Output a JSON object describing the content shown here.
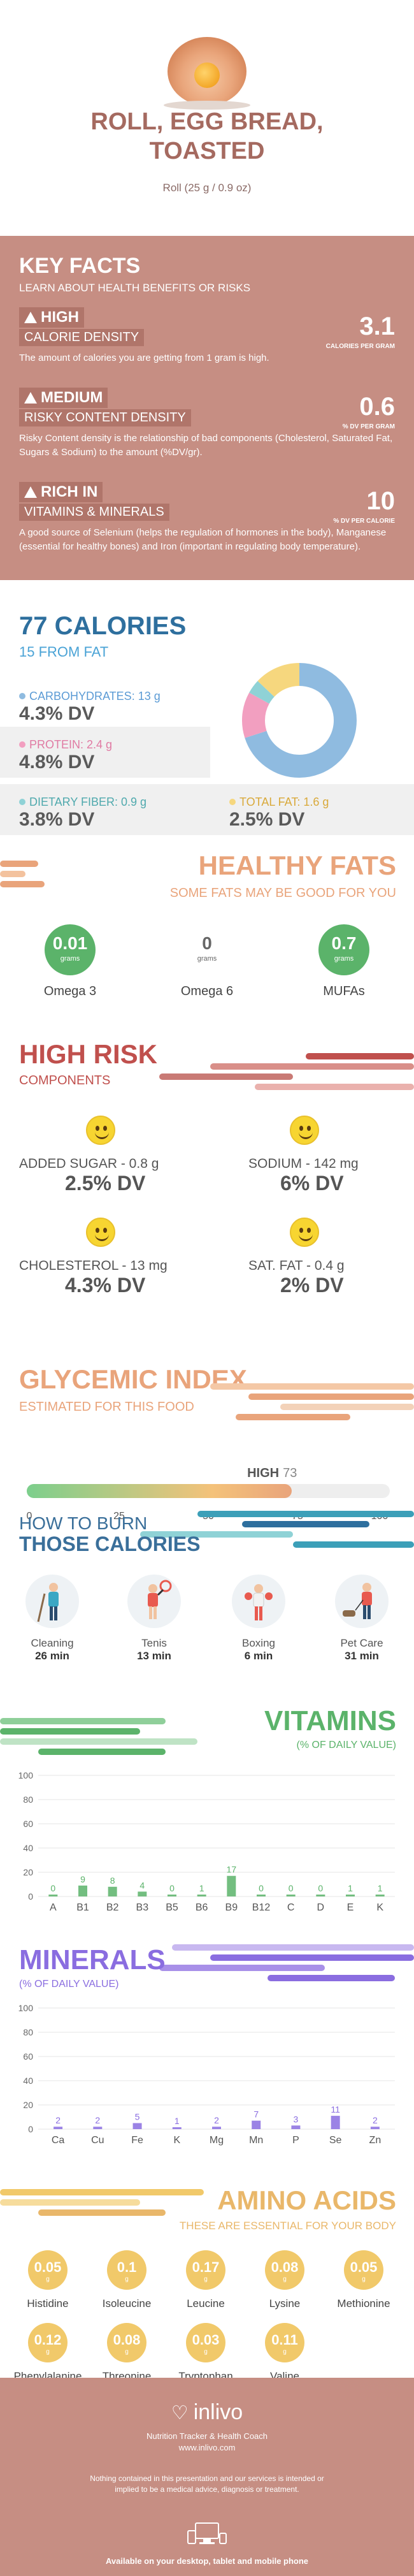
{
  "header": {
    "title_line1": "ROLL, EGG BREAD,",
    "title_line2": "TOASTED",
    "subtitle": "Roll (25 g / 0.9 oz)"
  },
  "key_facts": {
    "heading": "KEY FACTS",
    "subheading": "LEARN ABOUT HEALTH BENEFITS OR RISKS",
    "items": [
      {
        "level": "HIGH",
        "label": "CALORIE DENSITY",
        "value": "3.1",
        "unit": "CALORIES PER GRAM",
        "desc": "The amount of calories you are getting from 1 gram is high."
      },
      {
        "level": "MEDIUM",
        "label": "RISKY CONTENT DENSITY",
        "value": "0.6",
        "unit": "% DV PER GRAM",
        "desc": "Risky Content density is the relationship of bad components (Cholesterol, Saturated Fat, Sugars & Sodium) to the amount (%DV/gr)."
      },
      {
        "level": "RICH  IN",
        "label": "VITAMINS & MINERALS",
        "value": "10",
        "unit": "% DV PER CALORIE",
        "desc": "A good source of Selenium (helps the regulation of hormones in the body), Manganese (essential for healthy bones) and Iron (important in regulating body temperature)."
      }
    ]
  },
  "calories": {
    "heading": "77 CALORIES",
    "subheading": "15 FROM FAT",
    "colors": {
      "carb": "#8fbbe0",
      "protein": "#f29fc0",
      "fiber": "#8fd2d6",
      "fat": "#f6d77e"
    },
    "nutrients": [
      {
        "label": "CARBOHYDRATES: 13 g",
        "dv": "4.3% DV"
      },
      {
        "label": "PROTEIN: 2.4 g",
        "dv": "4.8% DV"
      },
      {
        "label": "DIETARY FIBER: 0.9 g",
        "dv": "3.8% DV"
      },
      {
        "label": "TOTAL FAT: 1.6 g",
        "dv": "2.5% DV"
      }
    ],
    "donut_fractions": [
      0.7,
      0.13,
      0.04,
      0.13
    ]
  },
  "fats": {
    "heading": "HEALTHY FATS",
    "subheading": "SOME FATS MAY BE GOOD FOR YOU",
    "unit": "grams",
    "items": [
      {
        "value": "0.01",
        "name": "Omega 3"
      },
      {
        "value": "0",
        "name": "Omega 6"
      },
      {
        "value": "0.7",
        "name": "MUFAs"
      }
    ]
  },
  "risk": {
    "heading": "HIGH RISK",
    "subheading": "COMPONENTS",
    "items": [
      {
        "label": "ADDED SUGAR - 0.8 g",
        "dv": "2.5% DV"
      },
      {
        "label": "SODIUM - 142 mg",
        "dv": "6% DV"
      },
      {
        "label": "CHOLESTEROL - 13 mg",
        "dv": "4.3% DV"
      },
      {
        "label": "SAT. FAT - 0.4 g",
        "dv": "2% DV"
      }
    ]
  },
  "glycemic": {
    "heading": "GLYCEMIC INDEX",
    "subheading": "ESTIMATED FOR THIS FOOD",
    "level": "HIGH",
    "value": 73,
    "value_label": "73",
    "ticks": [
      "0",
      "25",
      "50",
      "75",
      "100"
    ]
  },
  "burn": {
    "heading1": "HOW TO BURN",
    "heading2": "THOSE CALORIES",
    "activities": [
      {
        "name": "Cleaning",
        "time": "26 min",
        "icon": "cleaning-person-icon"
      },
      {
        "name": "Tenis",
        "time": "13 min",
        "icon": "tennis-player-icon"
      },
      {
        "name": "Boxing",
        "time": "6 min",
        "icon": "boxer-icon"
      },
      {
        "name": "Pet Care",
        "time": "31 min",
        "icon": "dog-walker-icon"
      }
    ]
  },
  "vitamins": {
    "heading": "VITAMINS",
    "subheading": "(% OF DAILY VALUE)",
    "color": "#5bb36a"
  },
  "minerals": {
    "heading": "MINERALS",
    "subheading": "(% OF DAILY VALUE)",
    "color": "#8a6de0"
  },
  "chart_data": [
    {
      "type": "bar",
      "title": "VITAMINS",
      "ylabel": "(% OF DAILY VALUE)",
      "categories": [
        "A",
        "B1",
        "B2",
        "B3",
        "B5",
        "B6",
        "B9",
        "B12",
        "C",
        "D",
        "E",
        "K"
      ],
      "values": [
        0,
        9,
        8,
        4,
        0,
        1,
        17,
        0,
        0,
        0,
        1,
        1
      ],
      "ylim": [
        0,
        100
      ],
      "yticks": [
        "0",
        "20",
        "40",
        "60",
        "80",
        "100"
      ]
    },
    {
      "type": "bar",
      "title": "MINERALS",
      "ylabel": "(% OF DAILY VALUE)",
      "categories": [
        "Ca",
        "Cu",
        "Fe",
        "K",
        "Mg",
        "Mn",
        "P",
        "Se",
        "Zn"
      ],
      "values": [
        2,
        2,
        5,
        1,
        2,
        7,
        3,
        11,
        2
      ],
      "ylim": [
        0,
        100
      ],
      "yticks": [
        "0",
        "20",
        "40",
        "60",
        "80",
        "100"
      ]
    }
  ],
  "amino": {
    "heading": "AMINO ACIDS",
    "subheading": "THESE ARE ESSENTIAL FOR YOUR BODY",
    "unit": "g",
    "items": [
      {
        "value": "0.05",
        "name": "Histidine"
      },
      {
        "value": "0.1",
        "name": "Isoleucine"
      },
      {
        "value": "0.17",
        "name": "Leucine"
      },
      {
        "value": "0.08",
        "name": "Lysine"
      },
      {
        "value": "0.05",
        "name": "Methionine"
      },
      {
        "value": "0.12",
        "name": "Phenylalanine"
      },
      {
        "value": "0.08",
        "name": "Threonine"
      },
      {
        "value": "0.03",
        "name": "Tryptophan"
      },
      {
        "value": "0.11",
        "name": "Valine"
      }
    ]
  },
  "footer": {
    "logo": "inlivo",
    "tagline": "Nutrition Tracker & Health Coach",
    "url": "www.inlivo.com",
    "disclaimer": "Nothing contained in this presentation and our services is intended or implied to be a medical advice, diagnosis or treatment.",
    "available": "Available on your desktop, tablet and mobile phone"
  }
}
